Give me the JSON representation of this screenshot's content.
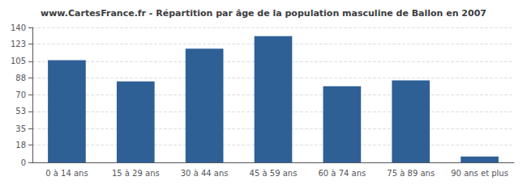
{
  "chart_data": {
    "type": "bar",
    "title": "www.CartesFrance.fr - Répartition par âge de la population masculine de Ballon en 2007",
    "categories": [
      "0 à 14 ans",
      "15 à 29 ans",
      "30 à 44 ans",
      "45 à 59 ans",
      "60 à 74 ans",
      "75 à 89 ans",
      "90 ans et plus"
    ],
    "values": [
      106,
      84,
      118,
      131,
      79,
      85,
      6
    ],
    "color": "#2e6096",
    "ylim": [
      0,
      140
    ],
    "yticks": [
      0,
      18,
      35,
      53,
      70,
      88,
      105,
      123,
      140
    ],
    "grid": true
  }
}
